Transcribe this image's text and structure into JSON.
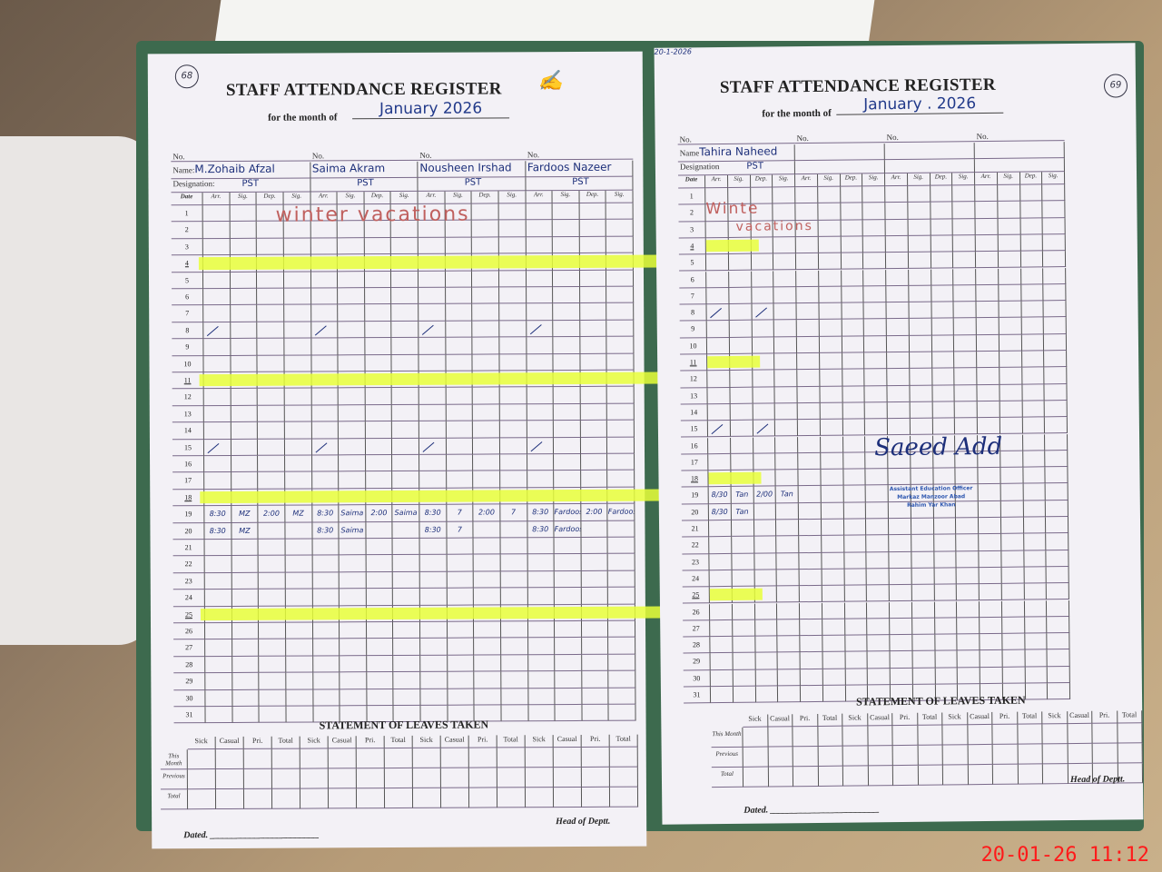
{
  "left": {
    "page_number": "68",
    "title": "STAFF ATTENDANCE REGISTER",
    "month_label": "for the month of",
    "month_value": "January 2026",
    "no_label": "No.",
    "name_label": "Name:",
    "designation_label": "Designation:",
    "date_header": "Date",
    "col_headers": [
      "Arr.",
      "Sig.",
      "Dep.",
      "Sig."
    ],
    "staff": [
      {
        "name": "M.Zohaib Afzal",
        "designation": "PST"
      },
      {
        "name": "Saima Akram",
        "designation": "PST"
      },
      {
        "name": "Nousheen Irshad",
        "designation": "PST"
      },
      {
        "name": "Fardoos Nazeer",
        "designation": "PST"
      }
    ],
    "vacation_note": "winter vacations",
    "highlighted_dates": [
      4,
      11,
      18,
      25
    ],
    "slashed_dates": [
      8,
      15
    ],
    "entries": {
      "19": [
        "8:30",
        "MZ",
        "2:00",
        "MZ",
        "8:30",
        "Saima",
        "2:00",
        "Saima",
        "8:30",
        "7",
        "2:00",
        "7",
        "8:30",
        "Fardoos",
        "2:00",
        "Fardoos"
      ],
      "20": [
        "8:30",
        "MZ",
        "",
        "",
        "8:30",
        "Saima",
        "",
        "",
        "8:30",
        "7",
        "",
        "",
        "8:30",
        "Fardoos",
        "",
        ""
      ]
    },
    "statement": {
      "title": "STATEMENT OF LEAVES TAKEN",
      "col_headers": [
        "Sick",
        "Casual",
        "Pri.",
        "Total"
      ],
      "row_labels": [
        "This Month",
        "Previous",
        "Total"
      ]
    },
    "dated_label": "Dated.",
    "head_label": "Head of Deptt."
  },
  "right": {
    "page_number": "69",
    "title": "STAFF ATTENDANCE REGISTER",
    "month_label": "for the month of",
    "month_value": "January . 2026",
    "no_label": "No.",
    "name_label": "Name",
    "designation_label": "Designation",
    "date_header": "Date",
    "col_headers": [
      "Arr.",
      "Sig.",
      "Dep.",
      "Sig."
    ],
    "staff": [
      {
        "name": "Tahira Naheed",
        "designation": "PST"
      },
      {
        "name": "",
        "designation": ""
      },
      {
        "name": "",
        "designation": ""
      },
      {
        "name": "",
        "designation": ""
      }
    ],
    "vacation_note_1": "Winte",
    "vacation_note_2": "vacations",
    "highlighted_dates": [
      4,
      11,
      18,
      25
    ],
    "slashed_dates": [
      8,
      15
    ],
    "entries": {
      "19": [
        "8/30",
        "Tan",
        "2/00",
        "Tan"
      ],
      "20": [
        "8/30",
        "Tan",
        "",
        ""
      ]
    },
    "signature": "Saeed Add",
    "signature_date": "20-1-2026",
    "stamp_lines": [
      "Assistant Education Officer",
      "Markaz Manzoor Abad",
      "Rahim Yar Khan"
    ],
    "statement": {
      "title": "STATEMENT OF LEAVES TAKEN",
      "col_headers": [
        "Sick",
        "Casual",
        "Pri.",
        "Total"
      ],
      "row_labels": [
        "This Month",
        "Previous",
        "Total"
      ]
    },
    "dated_label": "Dated.",
    "head_label": "Head of Deptt."
  },
  "timestamp": "20-01-26 11:12",
  "colors": {
    "highlight": "#e7ff3a",
    "ink": "#1d2f7a",
    "vacation_ink": "#c0605e",
    "timestamp": "#ff1a1a"
  }
}
